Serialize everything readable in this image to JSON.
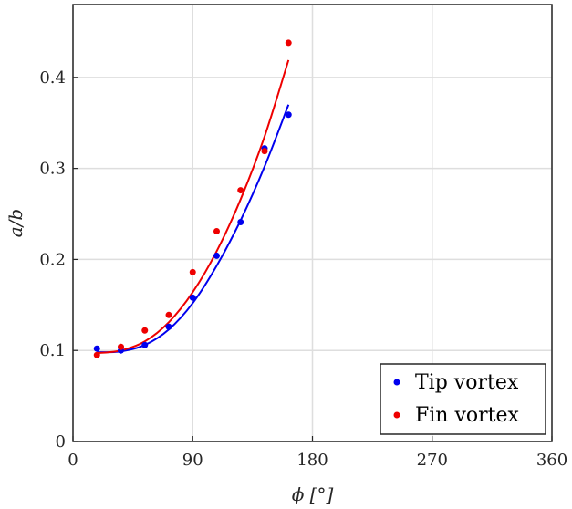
{
  "chart_data": {
    "type": "scatter",
    "xlabel": "ϕ [°]",
    "ylabel": "a/b",
    "xlim": [
      0,
      360
    ],
    "ylim": [
      0,
      0.48
    ],
    "xticks": [
      0,
      90,
      180,
      270,
      360
    ],
    "yticks": [
      0,
      0.1,
      0.2,
      0.3,
      0.4
    ],
    "xtick_labels": [
      "0",
      "90",
      "180",
      "270",
      "360"
    ],
    "ytick_labels": [
      "0",
      "0.1",
      "0.2",
      "0.3",
      "0.4"
    ],
    "grid": true,
    "legend_position": "bottom-right",
    "series": [
      {
        "name": "Tip vortex",
        "color": "#0000ee",
        "points": [
          [
            18,
            0.102
          ],
          [
            36,
            0.1
          ],
          [
            54,
            0.106
          ],
          [
            72,
            0.126
          ],
          [
            90,
            0.158
          ],
          [
            108,
            0.204
          ],
          [
            126,
            0.241
          ],
          [
            144,
            0.322
          ],
          [
            162,
            0.359
          ]
        ],
        "fit": [
          [
            18,
            0.098
          ],
          [
            36,
            0.099
          ],
          [
            54,
            0.106
          ],
          [
            72,
            0.123
          ],
          [
            90,
            0.152
          ],
          [
            108,
            0.193
          ],
          [
            126,
            0.243
          ],
          [
            144,
            0.302
          ],
          [
            162,
            0.37
          ]
        ]
      },
      {
        "name": "Fin vortex",
        "color": "#ee0000",
        "points": [
          [
            18,
            0.095
          ],
          [
            36,
            0.104
          ],
          [
            54,
            0.122
          ],
          [
            72,
            0.139
          ],
          [
            90,
            0.186
          ],
          [
            108,
            0.231
          ],
          [
            126,
            0.276
          ],
          [
            144,
            0.319
          ],
          [
            162,
            0.438
          ]
        ],
        "fit": [
          [
            18,
            0.097
          ],
          [
            36,
            0.1
          ],
          [
            54,
            0.11
          ],
          [
            72,
            0.131
          ],
          [
            90,
            0.164
          ],
          [
            108,
            0.209
          ],
          [
            126,
            0.266
          ],
          [
            144,
            0.335
          ],
          [
            162,
            0.419
          ]
        ]
      }
    ]
  }
}
